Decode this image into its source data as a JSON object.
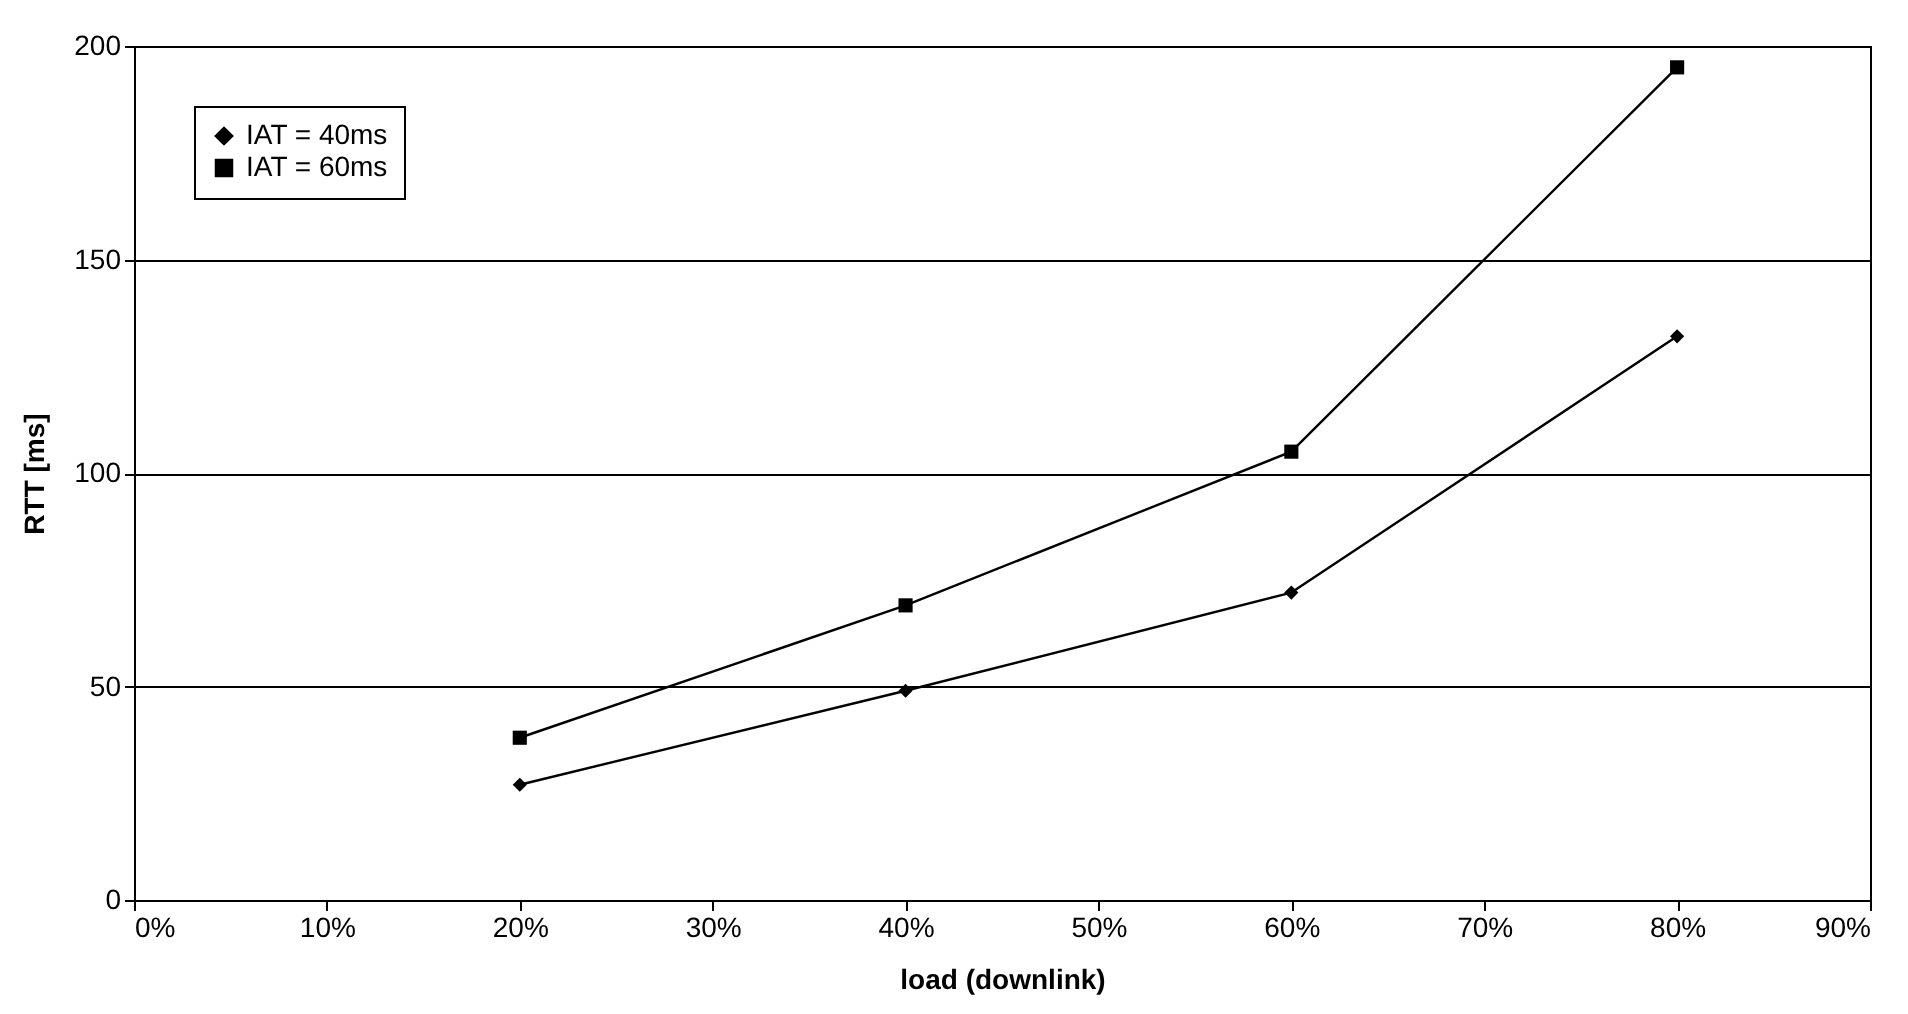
{
  "chart_data": {
    "type": "line",
    "xlabel": "load (downlink)",
    "ylabel": "RTT [ms]",
    "x": [
      20,
      40,
      60,
      80
    ],
    "series": [
      {
        "name": "IAT = 40ms",
        "color": "#000000",
        "marker": "diamond",
        "values": [
          27,
          49,
          72,
          132
        ]
      },
      {
        "name": "IAT = 60ms",
        "color": "#000000",
        "marker": "square",
        "values": [
          38,
          69,
          105,
          195
        ]
      }
    ],
    "xlim": [
      0,
      90
    ],
    "xticks": [
      {
        "value": 0,
        "label": "0%"
      },
      {
        "value": 10,
        "label": "10%"
      },
      {
        "value": 20,
        "label": "20%"
      },
      {
        "value": 30,
        "label": "30%"
      },
      {
        "value": 40,
        "label": "40%"
      },
      {
        "value": 50,
        "label": "50%"
      },
      {
        "value": 60,
        "label": "60%"
      },
      {
        "value": 70,
        "label": "70%"
      },
      {
        "value": 80,
        "label": "80%"
      },
      {
        "value": 90,
        "label": "90%"
      }
    ],
    "ylim": [
      0,
      200
    ],
    "yticks": [
      0,
      50,
      100,
      150,
      200
    ],
    "grid": "y",
    "legend": "top left",
    "line_style": "solid"
  }
}
